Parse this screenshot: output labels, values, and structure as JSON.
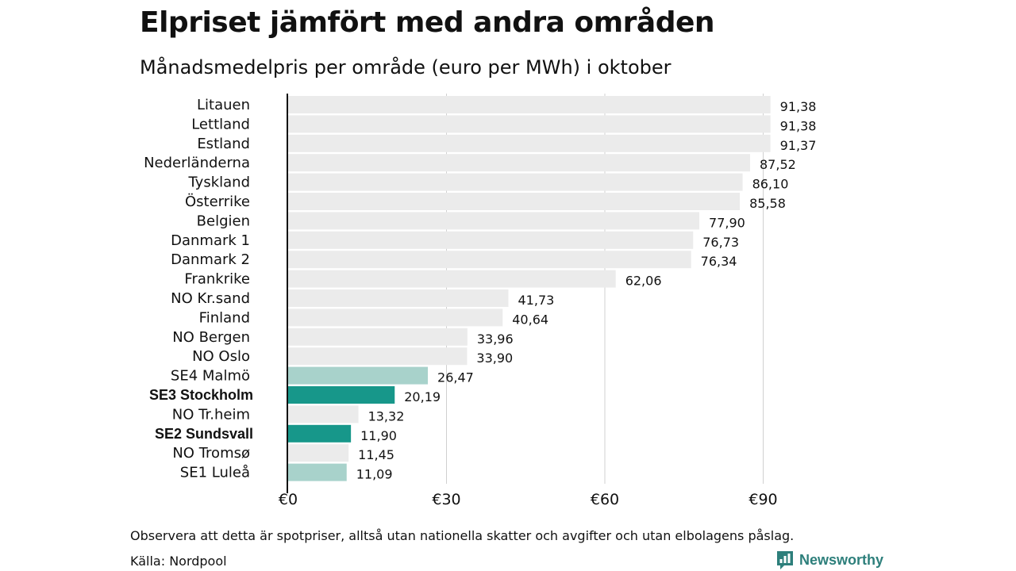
{
  "header": {
    "title": "Elpriset jämfört med andra områden",
    "subtitle": "Månadsmedelpris per område (euro per MWh) i oktober"
  },
  "footer": {
    "note": "Observera att detta är spotpriser, alltså utan nationella skatter och avgifter och utan elbolagens påslag.",
    "source": "Källa: Nordpool",
    "brand": "Newsworthy"
  },
  "colors": {
    "bar_default": "#ebebeb",
    "bar_highlight": "#17978a",
    "bar_light": "#a8d2cb",
    "brand": "#2d7f7b"
  },
  "chart_data": {
    "type": "bar",
    "orientation": "horizontal",
    "categories": [
      "Litauen",
      "Lettland",
      "Estland",
      "Nederländerna",
      "Tyskland",
      "Österrike",
      "Belgien",
      "Danmark 1",
      "Danmark 2",
      "Frankrike",
      "NO Kr.sand",
      "Finland",
      "NO Bergen",
      "NO Oslo",
      "SE4 Malmö",
      "SE3 Stockholm",
      "NO Tr.heim",
      "SE2 Sundsvall",
      "NO Tromsø",
      "SE1 Luleå"
    ],
    "values": [
      91.38,
      91.38,
      91.37,
      87.52,
      86.1,
      85.58,
      77.9,
      76.73,
      76.34,
      62.06,
      41.73,
      40.64,
      33.96,
      33.9,
      26.47,
      20.19,
      13.32,
      11.9,
      11.45,
      11.09
    ],
    "value_labels": [
      "91,38",
      "91,38",
      "91,37",
      "87,52",
      "86,10",
      "85,58",
      "77,90",
      "76,73",
      "76,34",
      "62,06",
      "41,73",
      "40,64",
      "33,96",
      "33,90",
      "26,47",
      "20,19",
      "13,32",
      "11,90",
      "11,45",
      "11,09"
    ],
    "highlight": [
      "default",
      "default",
      "default",
      "default",
      "default",
      "default",
      "default",
      "default",
      "default",
      "default",
      "default",
      "default",
      "default",
      "default",
      "light",
      "strong",
      "default",
      "strong",
      "default",
      "light"
    ],
    "bold_labels": [
      "SE3 Stockholm",
      "SE2 Sundsvall"
    ],
    "xlim": [
      0,
      95
    ],
    "xticks": [
      0,
      30,
      60,
      90
    ],
    "xtick_labels": [
      "€0",
      "€30",
      "€60",
      "€90"
    ],
    "grid": true
  }
}
